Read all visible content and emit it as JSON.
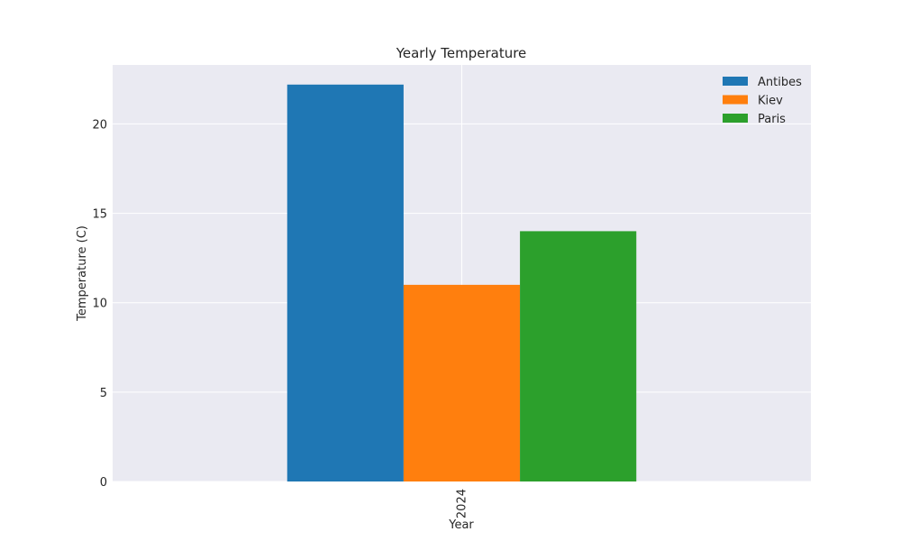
{
  "chart_data": {
    "type": "bar",
    "title": "Yearly Temperature",
    "xlabel": "Year",
    "ylabel": "Temperature (C)",
    "categories": [
      "2024"
    ],
    "series": [
      {
        "name": "Antibes",
        "values": [
          22.2
        ],
        "color": "#1f77b4"
      },
      {
        "name": "Kiev",
        "values": [
          11.0
        ],
        "color": "#ff7f0e"
      },
      {
        "name": "Paris",
        "values": [
          14.0
        ],
        "color": "#2ca02c"
      }
    ],
    "ylim": [
      0,
      23.3
    ],
    "yticks": [
      0,
      5,
      10,
      15,
      20
    ],
    "grid": true,
    "legend_position": "top-right",
    "style": {
      "plot_background": "#eaeaf2",
      "grid_color": "#ffffff"
    }
  }
}
